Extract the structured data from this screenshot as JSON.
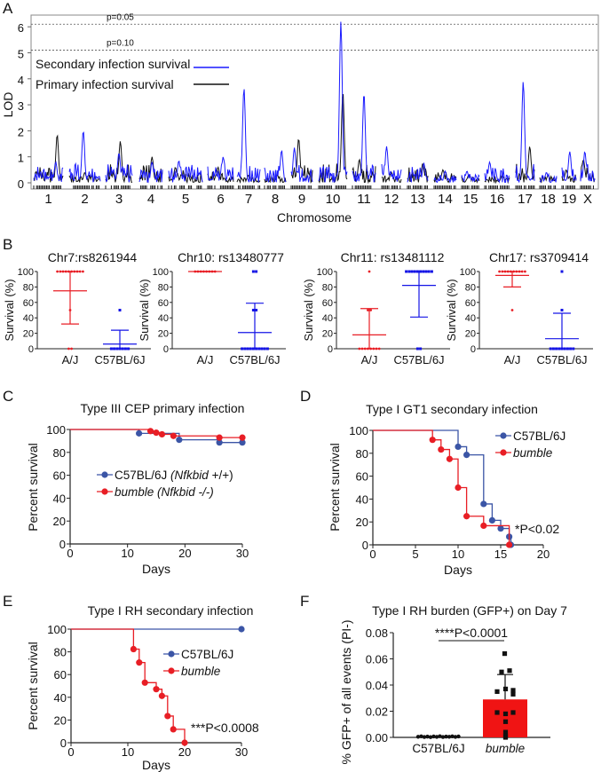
{
  "panels": {
    "a": "A",
    "b": "B",
    "c": "C",
    "d": "D",
    "e": "E",
    "f": "F"
  },
  "chart_data": [
    {
      "id": "A",
      "type": "line",
      "xlabel": "Chromosome",
      "ylabel": "LOD",
      "ylim": [
        0,
        6.4
      ],
      "yticks": [
        0,
        1,
        2,
        3,
        4,
        5,
        6
      ],
      "categories": [
        "1",
        "2",
        "3",
        "4",
        "5",
        "6",
        "7",
        "8",
        "9",
        "10",
        "11",
        "12",
        "13",
        "14",
        "15",
        "16",
        "17",
        "18",
        "19",
        "X"
      ],
      "thresholds": [
        {
          "label": "p=0.05",
          "value": 6.1
        },
        {
          "label": "p=0.10",
          "value": 5.1
        }
      ],
      "legend_placement": "top-left",
      "series": [
        {
          "name": "Secondary infection survival",
          "color": "#1a1aff",
          "peak_lod": [
            0.8,
            2.0,
            1.15,
            0.8,
            0.85,
            1.0,
            3.65,
            1.25,
            1.35,
            6.2,
            3.45,
            1.4,
            0.75,
            0.45,
            0.45,
            0.8,
            3.9,
            0.4,
            1.2,
            1.2
          ]
        },
        {
          "name": "Primary infection survival",
          "color": "#111111",
          "peak_lod": [
            1.85,
            0.4,
            1.6,
            1.0,
            0.6,
            0.6,
            0.3,
            0.3,
            1.7,
            3.5,
            0.9,
            0.4,
            0.75,
            0.5,
            0.3,
            0.3,
            1.4,
            0.3,
            0.5,
            0.9
          ]
        }
      ]
    },
    {
      "id": "B1",
      "type": "scatter",
      "title": "Chr7:rs8261944",
      "ylabel": "Survival (%)",
      "ylim": [
        0,
        100
      ],
      "yticks": [
        0,
        20,
        40,
        60,
        80,
        100
      ],
      "categories": [
        "A/J",
        "C57BL/6J"
      ],
      "groups": [
        {
          "color": "#e81e25",
          "marker": "circle",
          "values": [
            100,
            100,
            100,
            100,
            100,
            100,
            100,
            100,
            100,
            100,
            50,
            0,
            0
          ],
          "mean": 75,
          "sd_low": 32,
          "sd_high": 100
        },
        {
          "color": "#1414e6",
          "marker": "square",
          "values": [
            50,
            0,
            0,
            0,
            0,
            0,
            0,
            0
          ],
          "mean": 6,
          "sd_low": 0,
          "sd_high": 24
        }
      ]
    },
    {
      "id": "B2",
      "type": "scatter",
      "title": "Chr10: rs13480777",
      "ylabel": "Survival (%)",
      "ylim": [
        0,
        100
      ],
      "yticks": [
        0,
        20,
        40,
        60,
        80,
        100
      ],
      "categories": [
        "A/J",
        "C57BL/6J"
      ],
      "groups": [
        {
          "color": "#e81e25",
          "marker": "circle",
          "values": [
            100,
            100,
            100,
            100,
            100,
            100,
            100,
            100
          ],
          "mean": 100,
          "sd_low": 100,
          "sd_high": 100
        },
        {
          "color": "#1414e6",
          "marker": "square",
          "values": [
            100,
            100,
            50,
            50,
            0,
            0,
            0,
            0,
            0,
            0,
            0,
            0,
            0,
            0
          ],
          "mean": 21,
          "sd_low": 0,
          "sd_high": 59
        }
      ]
    },
    {
      "id": "B3",
      "type": "scatter",
      "title": "Chr11: rs13481112",
      "ylabel": "Survival (%)",
      "ylim": [
        0,
        100
      ],
      "yticks": [
        0,
        20,
        40,
        60,
        80,
        100
      ],
      "categories": [
        "A/J",
        "C57BL/6J"
      ],
      "groups": [
        {
          "color": "#e81e25",
          "marker": "circle",
          "values": [
            100,
            50,
            50,
            0,
            0,
            0,
            0,
            0,
            0,
            0,
            0
          ],
          "mean": 18,
          "sd_low": 0,
          "sd_high": 52
        },
        {
          "color": "#1414e6",
          "marker": "square",
          "values": [
            100,
            100,
            100,
            100,
            100,
            100,
            100,
            100,
            100,
            100,
            0,
            0
          ],
          "mean": 82,
          "sd_low": 41,
          "sd_high": 100
        }
      ]
    },
    {
      "id": "B4",
      "type": "scatter",
      "title": "Chr17: rs3709414",
      "ylabel": "Survival (%)",
      "ylim": [
        0,
        100
      ],
      "yticks": [
        0,
        20,
        40,
        60,
        80,
        100
      ],
      "categories": [
        "A/J",
        "C57BL/6J"
      ],
      "groups": [
        {
          "color": "#e81e25",
          "marker": "circle",
          "values": [
            100,
            100,
            100,
            100,
            100,
            100,
            100,
            100,
            100,
            100,
            50
          ],
          "mean": 95,
          "sd_low": 80,
          "sd_high": 100
        },
        {
          "color": "#1414e6",
          "marker": "square",
          "values": [
            100,
            50,
            0,
            0,
            0,
            0,
            0,
            0,
            0,
            0,
            0
          ],
          "mean": 13,
          "sd_low": 0,
          "sd_high": 46
        }
      ]
    },
    {
      "id": "C",
      "type": "line",
      "title": "Type III CEP primary infection",
      "xlabel": "Days",
      "ylabel": "Percent survival",
      "xlim": [
        0,
        30
      ],
      "xticks": [
        0,
        10,
        20,
        30
      ],
      "ylim": [
        0,
        100
      ],
      "yticks": [
        0,
        20,
        40,
        60,
        80,
        100
      ],
      "legend_placement": "center-left",
      "series": [
        {
          "name": "C57BL/6J",
          "name_italic": "(Nfkbid",
          "name_suffix": " +/+)",
          "color": "#3b55a6",
          "points": [
            [
              12,
              96.6
            ],
            [
              19,
              91.0
            ],
            [
              26,
              88.6
            ],
            [
              30,
              88.6
            ]
          ]
        },
        {
          "name": "",
          "name_italic": "bumble (Nfkbid -/-)",
          "name_suffix": "",
          "color": "#e81e25",
          "points": [
            [
              14,
              98.6
            ],
            [
              15,
              97.2
            ],
            [
              16,
              95.8
            ],
            [
              18,
              94.4
            ],
            [
              26,
              92.9
            ],
            [
              30,
              92.9
            ]
          ]
        }
      ]
    },
    {
      "id": "D",
      "type": "line",
      "title": "Type I GT1 secondary infection",
      "xlabel": "Days",
      "ylabel": "Percent survival",
      "xlim": [
        0,
        20
      ],
      "xticks": [
        0,
        5,
        10,
        15,
        20
      ],
      "ylim": [
        0,
        100
      ],
      "yticks": [
        0,
        20,
        40,
        60,
        80,
        100
      ],
      "annotation": "*P<0.02",
      "legend_placement": "top-right",
      "series": [
        {
          "name": "C57BL/6J",
          "name_italic": "",
          "name_suffix": "",
          "color": "#3b55a6",
          "points": [
            [
              10,
              85.7
            ],
            [
              11,
              78.6
            ],
            [
              13,
              35.7
            ],
            [
              14,
              21.4
            ],
            [
              15,
              14.3
            ],
            [
              16,
              7.1
            ],
            [
              16.2,
              0
            ]
          ]
        },
        {
          "name": "",
          "name_italic": "bumble",
          "name_suffix": "",
          "color": "#e81e25",
          "points": [
            [
              7,
              91.7
            ],
            [
              8,
              83.3
            ],
            [
              9,
              75.0
            ],
            [
              10,
              50.0
            ],
            [
              11,
              25.0
            ],
            [
              13,
              16.7
            ],
            [
              16,
              0
            ]
          ]
        }
      ]
    },
    {
      "id": "E",
      "type": "line",
      "title": "Type I RH secondary infection",
      "xlabel": "Days",
      "ylabel": "Percent survival",
      "xlim": [
        0,
        30
      ],
      "xticks": [
        0,
        10,
        20,
        30
      ],
      "ylim": [
        0,
        100
      ],
      "yticks": [
        0,
        20,
        40,
        60,
        80,
        100
      ],
      "annotation": "***P<0.0008",
      "legend_placement": "center",
      "series": [
        {
          "name": "C57BL/6J",
          "name_italic": "",
          "name_suffix": "",
          "color": "#3b55a6",
          "points": [
            [
              30,
              100
            ]
          ]
        },
        {
          "name": "",
          "name_italic": "bumble",
          "name_suffix": "",
          "color": "#e81e25",
          "points": [
            [
              11,
              82.4
            ],
            [
              12,
              70.6
            ],
            [
              13,
              52.9
            ],
            [
              15,
              47.1
            ],
            [
              16,
              41.2
            ],
            [
              17,
              23.5
            ],
            [
              18,
              11.8
            ],
            [
              20,
              0
            ]
          ]
        }
      ]
    },
    {
      "id": "F",
      "type": "bar",
      "title": "Type I RH burden (GFP+) on Day 7",
      "ylabel": "% GFP+ of all events (PI-)",
      "ylim": [
        0,
        0.08
      ],
      "yticks": [
        "0.00",
        "0.02",
        "0.04",
        "0.06",
        "0.08"
      ],
      "categories": [
        "C57BL/6J",
        "bumble"
      ],
      "category_italic": [
        false,
        true
      ],
      "annotation": "****P<0.0001",
      "bars": [
        {
          "mean": 0.0005,
          "sd_high": 0.0008,
          "color": "#ffffff",
          "points": [
            0.0005,
            0.0008,
            0.0003,
            0.0006,
            0.0002,
            0.0007,
            0.0004,
            0.0009,
            0.0003,
            0.0006,
            0.0005,
            0.0008,
            0.0004,
            0.0007
          ]
        },
        {
          "mean": 0.029,
          "sd_high": 0.048,
          "color": "#f01414",
          "points": [
            0.064,
            0.05,
            0.051,
            0.035,
            0.037,
            0.033,
            0.036,
            0.019,
            0.018,
            0.019,
            0.012,
            0.004,
            0.001,
            0.0
          ]
        }
      ]
    }
  ]
}
